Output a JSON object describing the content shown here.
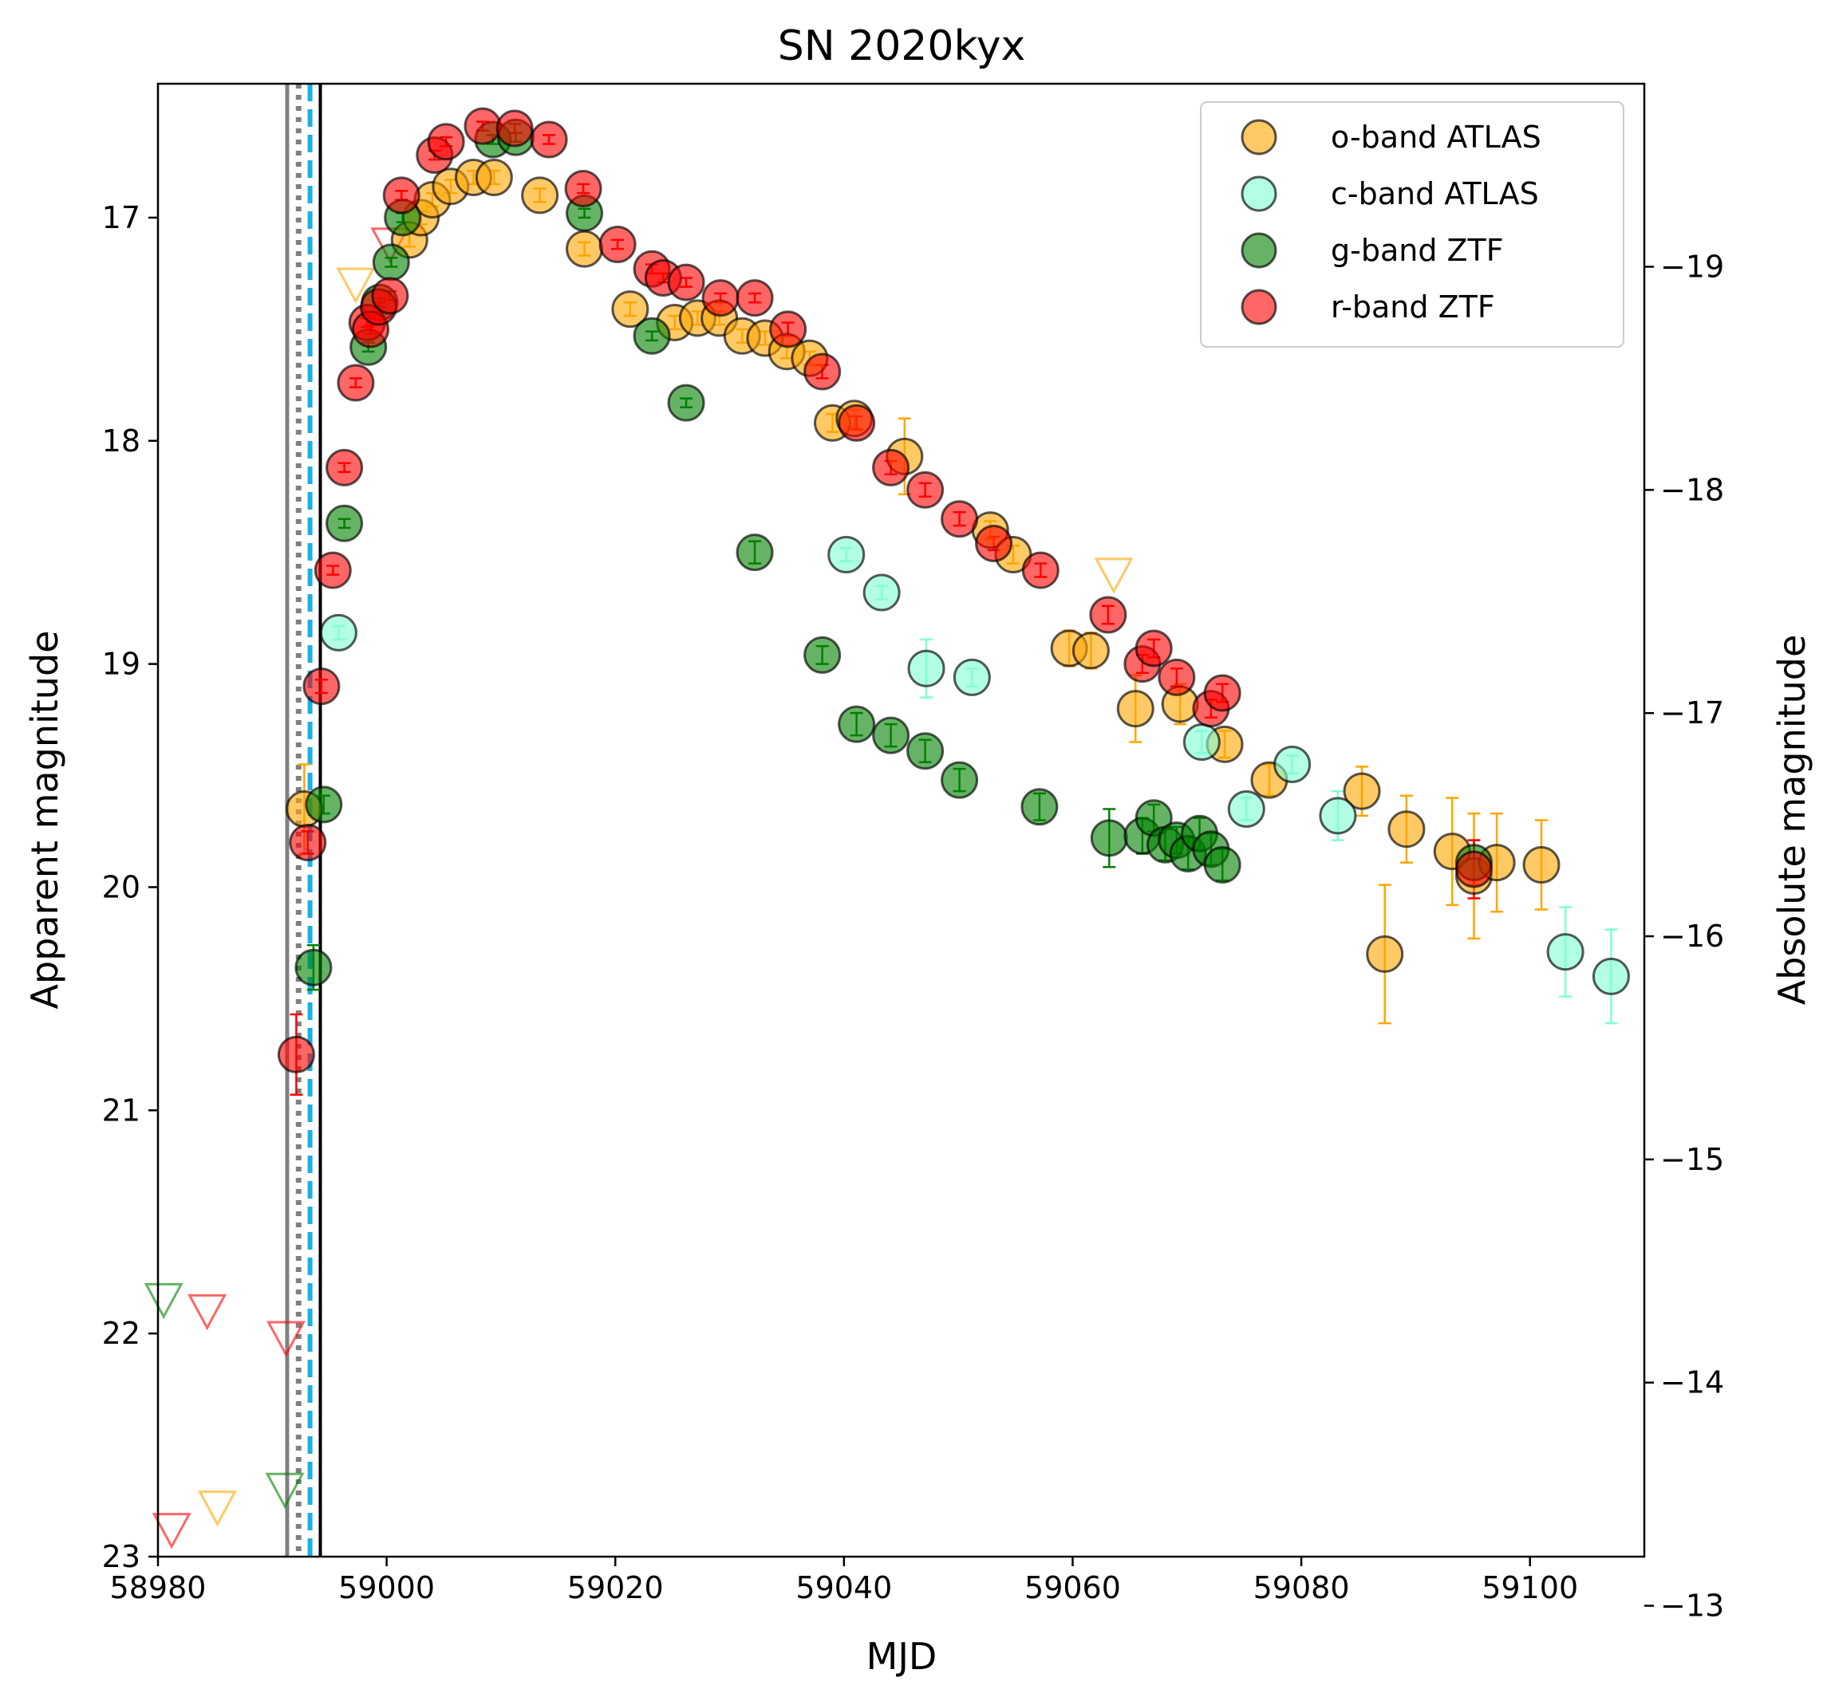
{
  "chart_data": {
    "type": "scatter",
    "title": "SN 2020kyx",
    "xlabel": "MJD",
    "ylabel": "Apparent magnitude",
    "y2label": "Absolute magnitude",
    "xlim": [
      58980,
      59110
    ],
    "ylim": [
      23,
      16.4
    ],
    "y2lim": [
      -13.22,
      -19.82
    ],
    "y_inverted": true,
    "grid": false,
    "legend_position": "top-right",
    "xticks": [
      58980,
      59000,
      59020,
      59040,
      59060,
      59080,
      59100
    ],
    "xtick_labels": [
      "58980",
      "59000",
      "59020",
      "59040",
      "59060",
      "59080",
      "59100"
    ],
    "yticks": [
      17,
      18,
      19,
      20,
      21,
      22,
      23
    ],
    "ytick_labels": [
      "17",
      "18",
      "19",
      "20",
      "21",
      "22",
      "23"
    ],
    "y2ticks": [
      -19,
      -18,
      -17,
      -16,
      -15,
      -14,
      -13
    ],
    "y2tick_labels": [
      "−19",
      "−18",
      "−17",
      "−16",
      "−15",
      "−14",
      "−13"
    ],
    "vertical_lines": [
      {
        "x": 58991.3,
        "style": "solid",
        "color": "#808080"
      },
      {
        "x": 58992.3,
        "style": "dotted",
        "color": "#808080"
      },
      {
        "x": 58993.3,
        "style": "dashed",
        "color": "#1ab0e8"
      },
      {
        "x": 58994.2,
        "style": "solid",
        "color": "#000000"
      }
    ],
    "series": [
      {
        "name": "o-band ATLAS",
        "color": "#ffa500",
        "points": [
          {
            "x": 58992.8,
            "y": 19.65,
            "err": 0.2
          },
          {
            "x": 59002,
            "y": 17.1,
            "err": 0.03
          },
          {
            "x": 59003,
            "y": 17.0,
            "err": 0.03
          },
          {
            "x": 59004,
            "y": 16.92,
            "err": 0.03
          },
          {
            "x": 59005.6,
            "y": 16.86,
            "err": 0.03
          },
          {
            "x": 59007.6,
            "y": 16.82,
            "err": 0.03
          },
          {
            "x": 59009.4,
            "y": 16.82,
            "err": 0.03
          },
          {
            "x": 59013.4,
            "y": 16.9,
            "err": 0.03
          },
          {
            "x": 59017.3,
            "y": 17.14,
            "err": 0.03
          },
          {
            "x": 59021.3,
            "y": 17.41,
            "err": 0.03
          },
          {
            "x": 59025.2,
            "y": 17.47,
            "err": 0.03
          },
          {
            "x": 59027.2,
            "y": 17.45,
            "err": 0.03
          },
          {
            "x": 59029.1,
            "y": 17.45,
            "err": 0.03
          },
          {
            "x": 59031.1,
            "y": 17.53,
            "err": 0.03
          },
          {
            "x": 59033.1,
            "y": 17.54,
            "err": 0.03
          },
          {
            "x": 59035,
            "y": 17.6,
            "err": 0.03
          },
          {
            "x": 59037,
            "y": 17.63,
            "err": 0.03
          },
          {
            "x": 59039,
            "y": 17.92,
            "err": 0.04
          },
          {
            "x": 59040.9,
            "y": 17.9,
            "err": 0.04
          },
          {
            "x": 59045.3,
            "y": 18.07,
            "err": 0.17
          },
          {
            "x": 59052.8,
            "y": 18.4,
            "err": 0.04
          },
          {
            "x": 59054.8,
            "y": 18.51,
            "err": 0.04
          },
          {
            "x": 59059.7,
            "y": 18.93,
            "err": 0.08
          },
          {
            "x": 59061.6,
            "y": 18.94,
            "err": 0.08
          },
          {
            "x": 59065.5,
            "y": 19.2,
            "err": 0.15
          },
          {
            "x": 59069.4,
            "y": 19.18,
            "err": 0.09
          },
          {
            "x": 59073.3,
            "y": 19.36,
            "err": 0.06
          },
          {
            "x": 59077.2,
            "y": 19.52,
            "err": 0.07
          },
          {
            "x": 59085.3,
            "y": 19.57,
            "err": 0.11
          },
          {
            "x": 59089.2,
            "y": 19.74,
            "err": 0.15
          },
          {
            "x": 59087.3,
            "y": 20.3,
            "err": 0.31
          },
          {
            "x": 59093.2,
            "y": 19.84,
            "err": 0.24
          },
          {
            "x": 59095.1,
            "y": 19.95,
            "err": 0.28
          },
          {
            "x": 59097.1,
            "y": 19.89,
            "err": 0.22
          },
          {
            "x": 59101,
            "y": 19.9,
            "err": 0.2
          }
        ],
        "upper_limits": [
          {
            "x": 58985.2,
            "y": 22.78
          },
          {
            "x": 58997.3,
            "y": 17.3
          },
          {
            "x": 59063.6,
            "y": 18.6
          }
        ]
      },
      {
        "name": "c-band ATLAS",
        "color": "#7fffd4",
        "points": [
          {
            "x": 58995.8,
            "y": 18.86,
            "err": 0.03
          },
          {
            "x": 59040.2,
            "y": 18.51,
            "err": 0.03
          },
          {
            "x": 59043.3,
            "y": 18.68,
            "err": 0.03
          },
          {
            "x": 59047.2,
            "y": 19.02,
            "err": 0.13
          },
          {
            "x": 59051.2,
            "y": 19.06,
            "err": 0.04
          },
          {
            "x": 59071.3,
            "y": 19.35,
            "err": 0.05
          },
          {
            "x": 59075.2,
            "y": 19.65,
            "err": 0.05
          },
          {
            "x": 59079.2,
            "y": 19.45,
            "err": 0.04
          },
          {
            "x": 59083.2,
            "y": 19.68,
            "err": 0.11
          },
          {
            "x": 59103.1,
            "y": 20.29,
            "err": 0.2
          },
          {
            "x": 59107.1,
            "y": 20.4,
            "err": 0.21
          }
        ],
        "upper_limits": []
      },
      {
        "name": "g-band ZTF",
        "color": "#008000",
        "points": [
          {
            "x": 58993.6,
            "y": 20.36,
            "err": 0.1
          },
          {
            "x": 58994.5,
            "y": 19.63,
            "err": 0.04
          },
          {
            "x": 58996.3,
            "y": 18.37,
            "err": 0.02
          },
          {
            "x": 58998.4,
            "y": 17.58,
            "err": 0.02
          },
          {
            "x": 58999.4,
            "y": 17.38,
            "err": 0.02
          },
          {
            "x": 59000.4,
            "y": 17.2,
            "err": 0.02
          },
          {
            "x": 59001.4,
            "y": 17.0,
            "err": 0.02
          },
          {
            "x": 59009.3,
            "y": 16.65,
            "err": 0.02
          },
          {
            "x": 59011.3,
            "y": 16.64,
            "err": 0.02
          },
          {
            "x": 59017.3,
            "y": 16.98,
            "err": 0.02
          },
          {
            "x": 59023.2,
            "y": 17.53,
            "err": 0.02
          },
          {
            "x": 59026.2,
            "y": 17.83,
            "err": 0.02
          },
          {
            "x": 59032.2,
            "y": 18.5,
            "err": 0.05
          },
          {
            "x": 59038.1,
            "y": 18.96,
            "err": 0.04
          },
          {
            "x": 59041.1,
            "y": 19.27,
            "err": 0.05
          },
          {
            "x": 59044.1,
            "y": 19.32,
            "err": 0.05
          },
          {
            "x": 59047.1,
            "y": 19.39,
            "err": 0.05
          },
          {
            "x": 59050.1,
            "y": 19.52,
            "err": 0.05
          },
          {
            "x": 59057.1,
            "y": 19.64,
            "err": 0.06
          },
          {
            "x": 59063.2,
            "y": 19.78,
            "err": 0.13
          },
          {
            "x": 59066.1,
            "y": 19.77,
            "err": 0.08
          },
          {
            "x": 59067.1,
            "y": 19.69,
            "err": 0.06
          },
          {
            "x": 59068.1,
            "y": 19.81,
            "err": 0.07
          },
          {
            "x": 59069.1,
            "y": 19.79,
            "err": 0.06
          },
          {
            "x": 59070.1,
            "y": 19.85,
            "err": 0.07
          },
          {
            "x": 59071.1,
            "y": 19.76,
            "err": 0.07
          },
          {
            "x": 59072.1,
            "y": 19.83,
            "err": 0.07
          },
          {
            "x": 59073.1,
            "y": 19.9,
            "err": 0.07
          },
          {
            "x": 59095.1,
            "y": 19.89,
            "err": 0.1
          }
        ],
        "upper_limits": [
          {
            "x": 58980.5,
            "y": 21.85
          },
          {
            "x": 58991.1,
            "y": 22.7
          }
        ]
      },
      {
        "name": "r-band ZTF",
        "color": "#ff0000",
        "points": [
          {
            "x": 58992.1,
            "y": 20.75,
            "err": 0.18
          },
          {
            "x": 58993.1,
            "y": 19.8,
            "err": 0.05
          },
          {
            "x": 58994.3,
            "y": 19.1,
            "err": 0.03
          },
          {
            "x": 58995.3,
            "y": 18.58,
            "err": 0.02
          },
          {
            "x": 58996.3,
            "y": 18.12,
            "err": 0.02
          },
          {
            "x": 58997.3,
            "y": 17.74,
            "err": 0.02
          },
          {
            "x": 58998.3,
            "y": 17.47,
            "err": 0.02
          },
          {
            "x": 58998.6,
            "y": 17.5,
            "err": 0.02
          },
          {
            "x": 58999.3,
            "y": 17.4,
            "err": 0.02
          },
          {
            "x": 59000.3,
            "y": 17.35,
            "err": 0.02
          },
          {
            "x": 59001.3,
            "y": 16.9,
            "err": 0.02
          },
          {
            "x": 59004.2,
            "y": 16.72,
            "err": 0.02
          },
          {
            "x": 59005.2,
            "y": 16.66,
            "err": 0.02
          },
          {
            "x": 59008.4,
            "y": 16.59,
            "err": 0.02
          },
          {
            "x": 59011.2,
            "y": 16.6,
            "err": 0.02
          },
          {
            "x": 59014.2,
            "y": 16.65,
            "err": 0.02
          },
          {
            "x": 59017.2,
            "y": 16.87,
            "err": 0.02
          },
          {
            "x": 59020.2,
            "y": 17.12,
            "err": 0.02
          },
          {
            "x": 59023.2,
            "y": 17.23,
            "err": 0.02
          },
          {
            "x": 59024.2,
            "y": 17.27,
            "err": 0.02
          },
          {
            "x": 59026.2,
            "y": 17.29,
            "err": 0.02
          },
          {
            "x": 59029.2,
            "y": 17.36,
            "err": 0.02
          },
          {
            "x": 59032.2,
            "y": 17.36,
            "err": 0.02
          },
          {
            "x": 59035.1,
            "y": 17.5,
            "err": 0.03
          },
          {
            "x": 59038.1,
            "y": 17.69,
            "err": 0.03
          },
          {
            "x": 59041.1,
            "y": 17.92,
            "err": 0.03
          },
          {
            "x": 59044.1,
            "y": 18.12,
            "err": 0.03
          },
          {
            "x": 59047.1,
            "y": 18.22,
            "err": 0.03
          },
          {
            "x": 59050.1,
            "y": 18.35,
            "err": 0.03
          },
          {
            "x": 59053.1,
            "y": 18.46,
            "err": 0.03
          },
          {
            "x": 59057.2,
            "y": 18.58,
            "err": 0.03
          },
          {
            "x": 59063.1,
            "y": 18.78,
            "err": 0.04
          },
          {
            "x": 59066.1,
            "y": 19.0,
            "err": 0.04
          },
          {
            "x": 59067.1,
            "y": 18.93,
            "err": 0.04
          },
          {
            "x": 59069.1,
            "y": 19.06,
            "err": 0.04
          },
          {
            "x": 59072.1,
            "y": 19.2,
            "err": 0.04
          },
          {
            "x": 59073.1,
            "y": 19.13,
            "err": 0.04
          },
          {
            "x": 59095.1,
            "y": 19.92,
            "err": 0.13
          }
        ],
        "upper_limits": [
          {
            "x": 58981.2,
            "y": 22.88
          },
          {
            "x": 58984.3,
            "y": 21.9
          },
          {
            "x": 58991.2,
            "y": 22.02
          },
          {
            "x": 59000.3,
            "y": 17.12
          }
        ]
      }
    ]
  }
}
